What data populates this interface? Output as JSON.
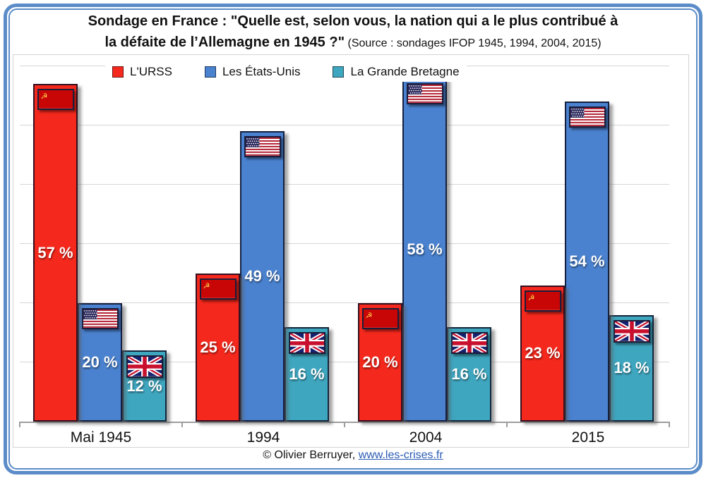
{
  "frame_color": "#5b8cc8",
  "title": {
    "line1": "Sondage en France : \"Quelle est, selon vous, la nation qui a le plus contribué à",
    "line2_bold": "la défaite de l’Allemagne en 1945 ?\"",
    "source": "(Source : sondages IFOP 1945, 1994, 2004, 2015)"
  },
  "chart_data": {
    "type": "bar",
    "title": "Sondage en France : \"Quelle est, selon vous, la nation qui a le plus contribué à la défaite de l’Allemagne en 1945 ?\"",
    "subtitle": "(Source : sondages IFOP 1945, 1994, 2004, 2015)",
    "categories": [
      "Mai 1945",
      "1994",
      "2004",
      "2015"
    ],
    "series": [
      {
        "name": "L'URSS",
        "flag": "ussr-flag",
        "color": "#f5281d",
        "values": [
          57,
          25,
          20,
          23
        ]
      },
      {
        "name": "Les États-Unis",
        "flag": "usa-flag",
        "color": "#4a82cf",
        "values": [
          20,
          49,
          58,
          54
        ]
      },
      {
        "name": "La Grande Bretagne",
        "flag": "uk-flag",
        "color": "#3fa6bf",
        "values": [
          12,
          16,
          16,
          18
        ]
      }
    ],
    "value_suffix": " %",
    "ylabel": "",
    "xlabel": "",
    "ylim": [
      0,
      62
    ],
    "gridline_step": 10,
    "grid": true,
    "legend_position": "top-left"
  },
  "footer": {
    "copyright": "© Olivier Berruyer,",
    "link": "www.les-crises.fr"
  }
}
